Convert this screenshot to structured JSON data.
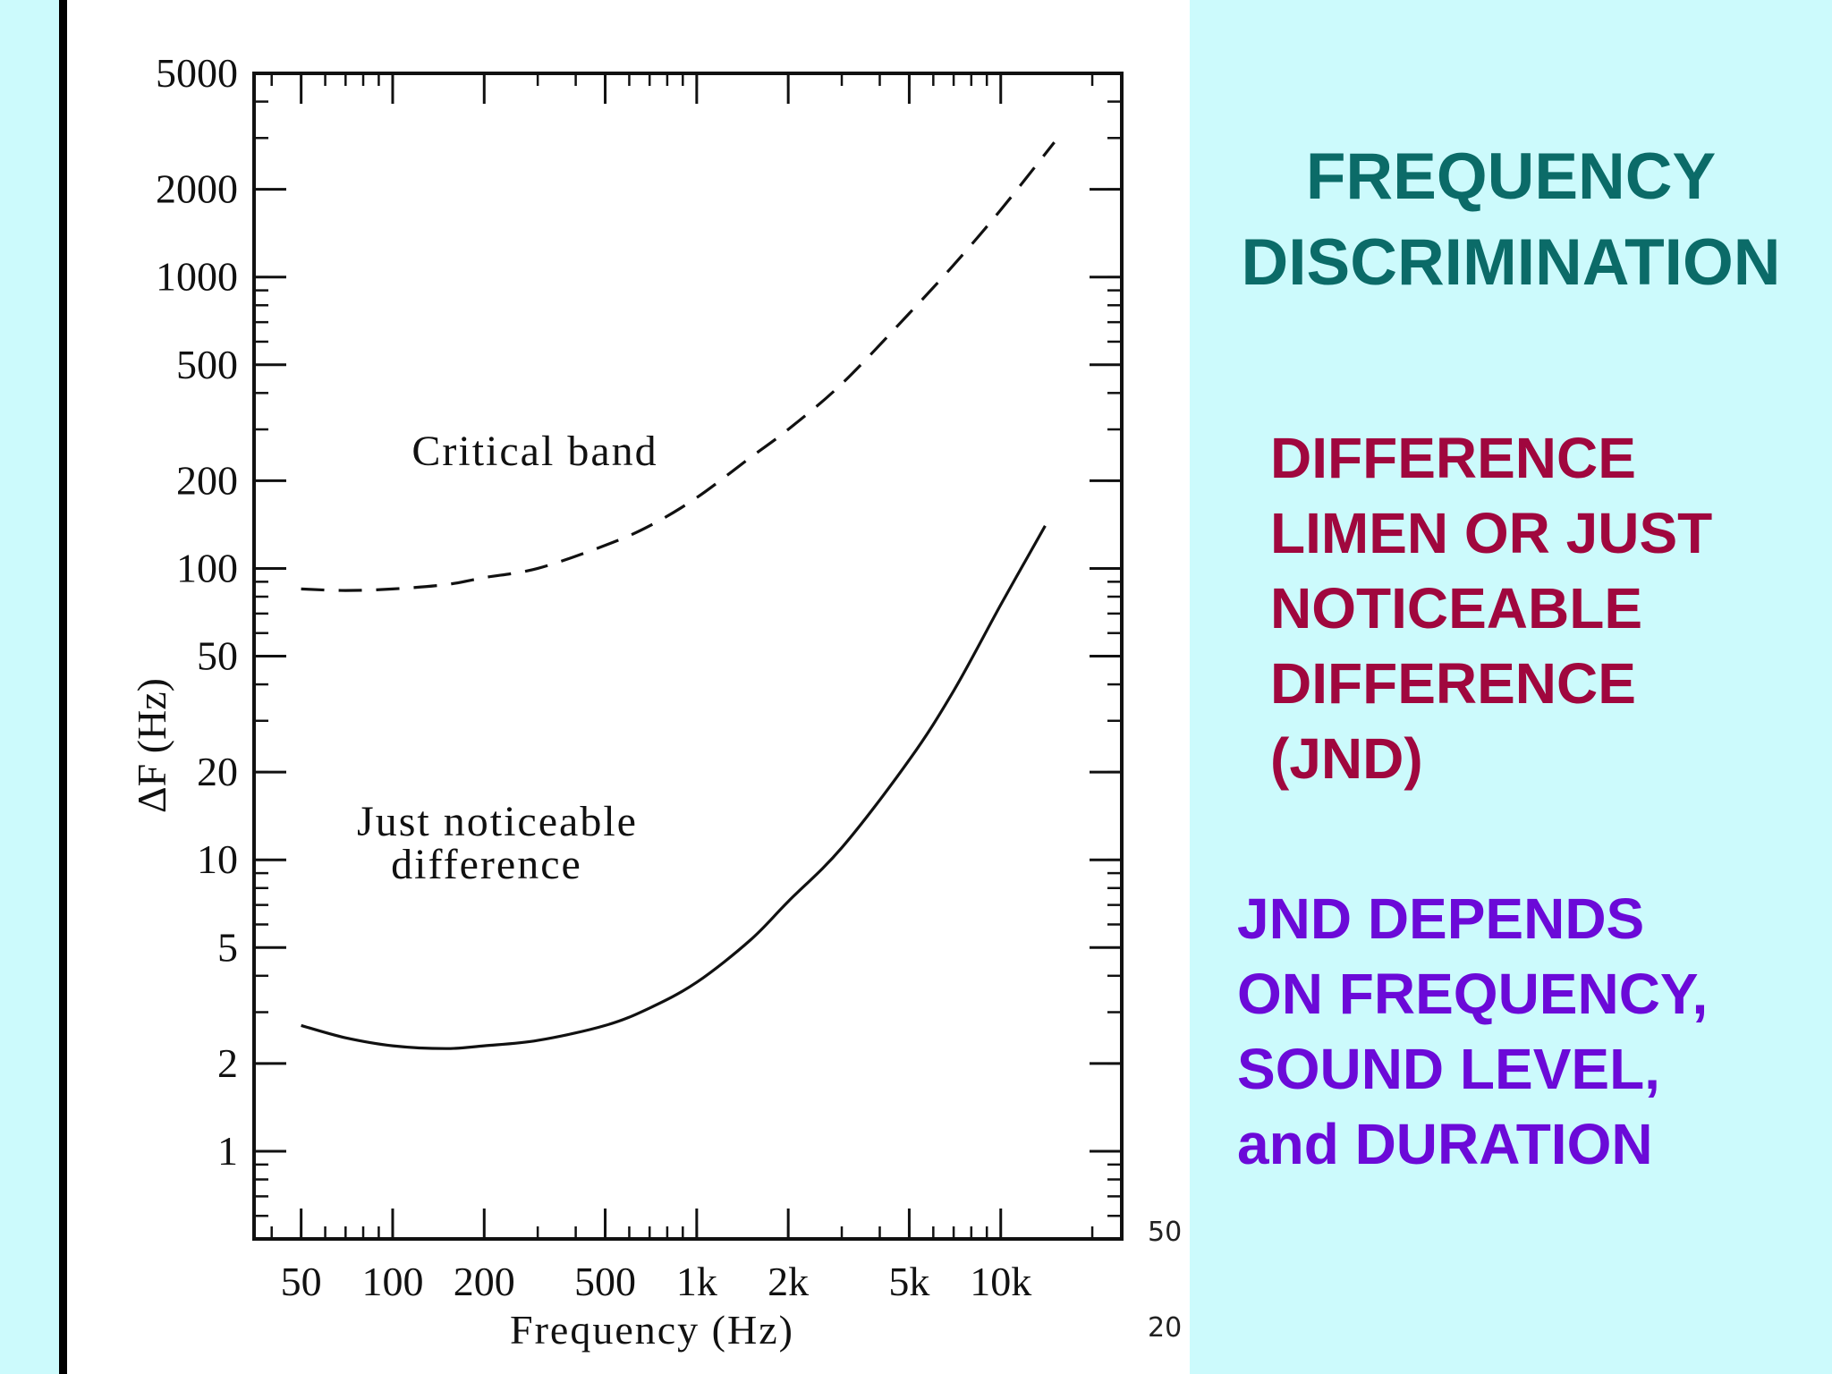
{
  "panel": {
    "title_lines": [
      "FREQUENCY",
      "DISCRIMINATION"
    ],
    "jnd_lines": [
      "DIFFERENCE",
      "LIMEN OR JUST",
      "NOTICEABLE",
      "DIFFERENCE",
      "(JND)"
    ],
    "depends_lines": [
      "JND DEPENDS",
      "ON FREQUENCY,",
      "SOUND LEVEL,",
      "and DURATION"
    ],
    "title_color": "#0b6b68",
    "jnd_color": "#a0073e",
    "depends_color": "#6b0ad8",
    "background_color": "#ccfafc"
  },
  "edge_notes": [
    "50",
    "20"
  ],
  "chart_data": {
    "type": "line",
    "xlabel": "Frequency (Hz)",
    "ylabel": "ΔF (Hz)",
    "x_scale": "log",
    "y_scale": "log",
    "xlim": [
      35,
      25000
    ],
    "ylim": [
      0.5,
      5000
    ],
    "x_ticks": [
      50,
      100,
      200,
      500,
      1000,
      2000,
      5000,
      10000
    ],
    "x_tick_labels": [
      "50",
      "100",
      "200",
      "500",
      "1k",
      "2k",
      "5k",
      "10k"
    ],
    "y_ticks": [
      1,
      2,
      5,
      10,
      20,
      50,
      100,
      200,
      500,
      1000,
      2000,
      5000
    ],
    "y_tick_labels": [
      "1",
      "2",
      "5",
      "10",
      "20",
      "50",
      "100",
      "200",
      "500",
      "1000",
      "2000",
      "5000"
    ],
    "grid": false,
    "series": [
      {
        "name": "Critical band",
        "style": "dashed",
        "x": [
          50,
          70,
          100,
          150,
          200,
          300,
          500,
          700,
          1000,
          1500,
          2000,
          3000,
          5000,
          7000,
          10000,
          15000
        ],
        "y": [
          85,
          84,
          85,
          88,
          93,
          100,
          120,
          140,
          175,
          240,
          300,
          430,
          750,
          1100,
          1700,
          2900
        ]
      },
      {
        "name": "Just noticeable difference",
        "style": "solid",
        "x": [
          50,
          70,
          100,
          150,
          200,
          300,
          500,
          700,
          1000,
          1500,
          2000,
          3000,
          5000,
          7000,
          10000,
          14000
        ],
        "y": [
          2.7,
          2.45,
          2.3,
          2.25,
          2.3,
          2.4,
          2.7,
          3.1,
          3.8,
          5.3,
          7.2,
          11,
          22,
          38,
          75,
          140
        ]
      }
    ],
    "annotations": [
      {
        "text": "Critical band",
        "series": 0
      },
      {
        "text": "Just noticeable",
        "series": 1
      },
      {
        "text": "difference",
        "series": 1
      }
    ]
  }
}
